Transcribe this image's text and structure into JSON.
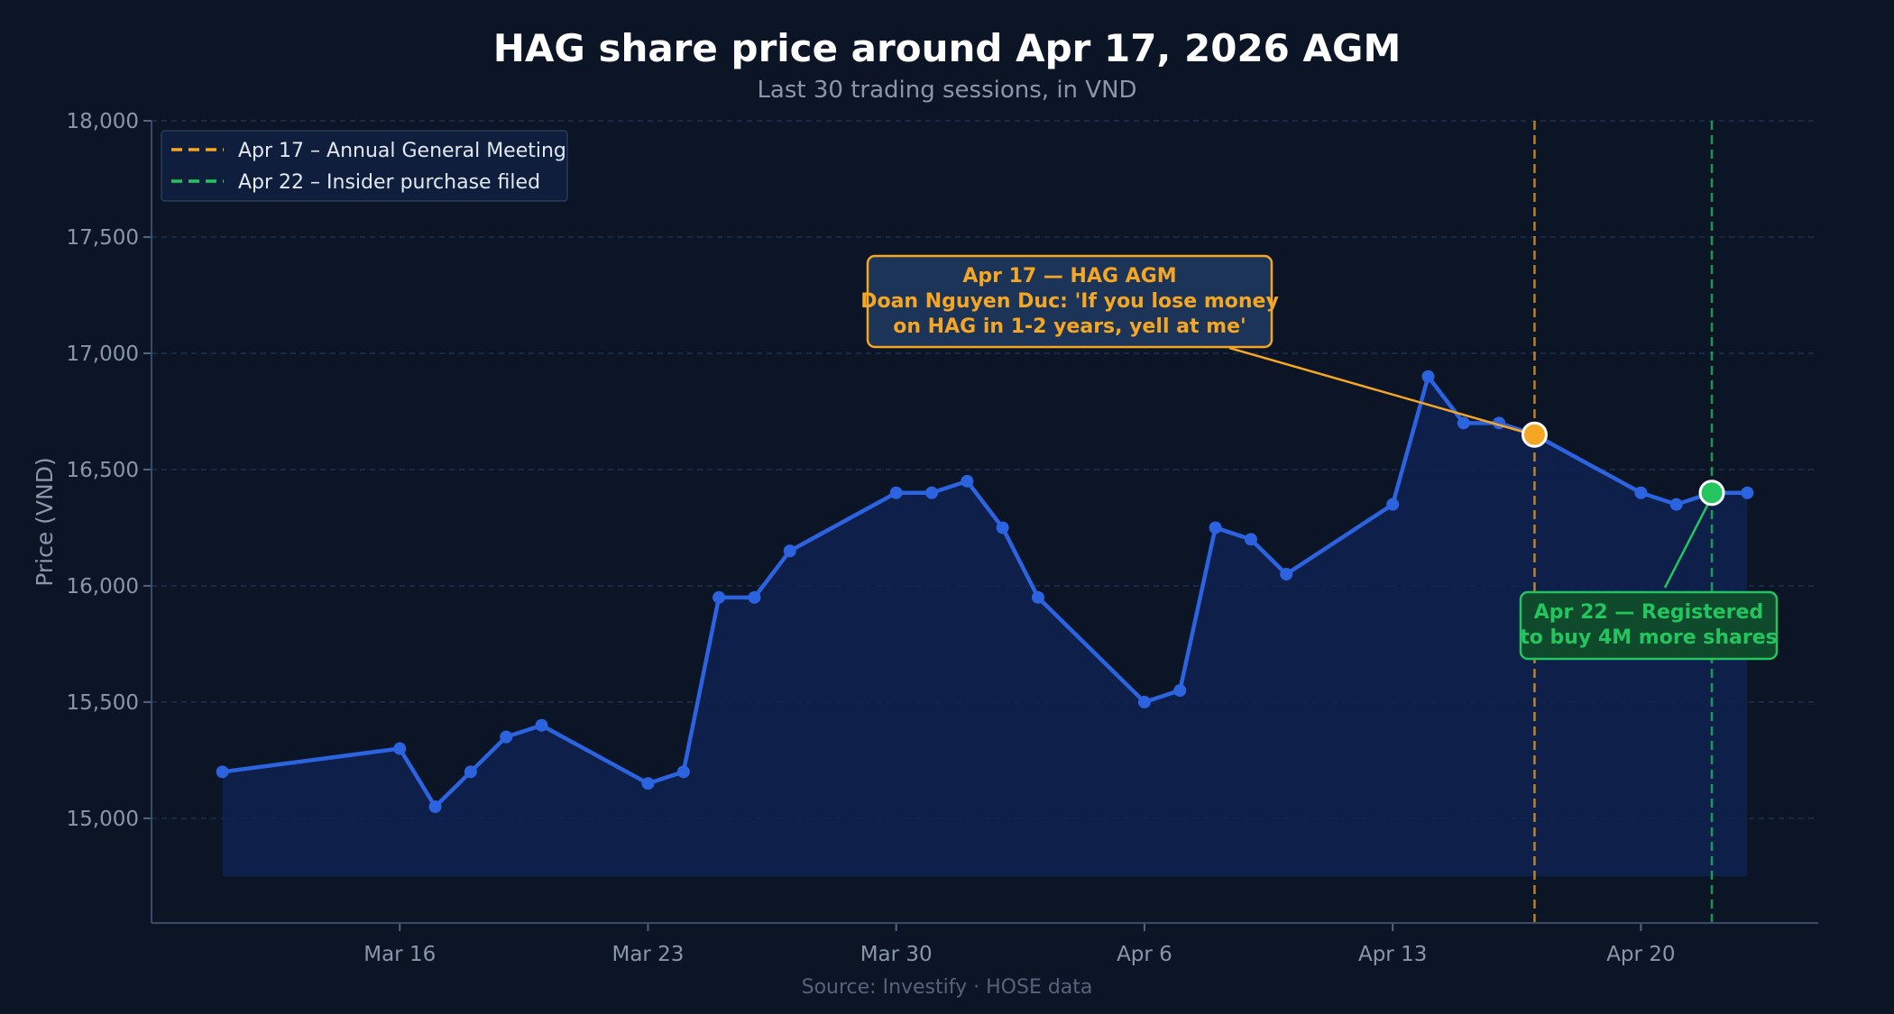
{
  "chart_data": {
    "type": "line",
    "title": "HAG share price around Apr 17, 2026 AGM",
    "subtitle": "Last 30 trading sessions, in VND",
    "ylabel": "Price (VND)",
    "xlabel": "",
    "ylim": [
      14550,
      18000
    ],
    "xlim": [
      "2026-03-09",
      "2026-04-25"
    ],
    "grid": true,
    "legend_position": "top-left",
    "source": "Source: Investify · HOSE data",
    "y_ticks": [
      {
        "value": 15000,
        "label": "15,000"
      },
      {
        "value": 15500,
        "label": "15,500"
      },
      {
        "value": 16000,
        "label": "16,000"
      },
      {
        "value": 16500,
        "label": "16,500"
      },
      {
        "value": 17000,
        "label": "17,000"
      },
      {
        "value": 17500,
        "label": "17,500"
      },
      {
        "value": 18000,
        "label": "18,000"
      }
    ],
    "x_ticks": [
      {
        "value": "2026-03-16",
        "label": "Mar 16"
      },
      {
        "value": "2026-03-23",
        "label": "Mar 23"
      },
      {
        "value": "2026-03-30",
        "label": "Mar 30"
      },
      {
        "value": "2026-04-06",
        "label": "Apr 6"
      },
      {
        "value": "2026-04-13",
        "label": "Apr 13"
      },
      {
        "value": "2026-04-20",
        "label": "Apr 20"
      }
    ],
    "series": [
      {
        "color": "#2b63e0",
        "points": [
          {
            "x": "2026-03-11",
            "y": 15200
          },
          {
            "x": "2026-03-16",
            "y": 15300
          },
          {
            "x": "2026-03-17",
            "y": 15050
          },
          {
            "x": "2026-03-18",
            "y": 15200
          },
          {
            "x": "2026-03-19",
            "y": 15350
          },
          {
            "x": "2026-03-20",
            "y": 15400
          },
          {
            "x": "2026-03-23",
            "y": 15150
          },
          {
            "x": "2026-03-24",
            "y": 15200
          },
          {
            "x": "2026-03-25",
            "y": 15950
          },
          {
            "x": "2026-03-26",
            "y": 15950
          },
          {
            "x": "2026-03-27",
            "y": 16150
          },
          {
            "x": "2026-03-30",
            "y": 16400
          },
          {
            "x": "2026-03-31",
            "y": 16400
          },
          {
            "x": "2026-04-01",
            "y": 16450
          },
          {
            "x": "2026-04-02",
            "y": 16250
          },
          {
            "x": "2026-04-03",
            "y": 15950
          },
          {
            "x": "2026-04-06",
            "y": 15500
          },
          {
            "x": "2026-04-07",
            "y": 15550
          },
          {
            "x": "2026-04-08",
            "y": 16250
          },
          {
            "x": "2026-04-09",
            "y": 16200
          },
          {
            "x": "2026-04-10",
            "y": 16050
          },
          {
            "x": "2026-04-13",
            "y": 16350
          },
          {
            "x": "2026-04-14",
            "y": 16900
          },
          {
            "x": "2026-04-15",
            "y": 16700
          },
          {
            "x": "2026-04-16",
            "y": 16700
          },
          {
            "x": "2026-04-17",
            "y": 16650
          },
          {
            "x": "2026-04-20",
            "y": 16400
          },
          {
            "x": "2026-04-21",
            "y": 16350
          },
          {
            "x": "2026-04-22",
            "y": 16400
          },
          {
            "x": "2026-04-23",
            "y": 16400
          }
        ]
      }
    ],
    "events": [
      {
        "date": "2026-04-17",
        "price": 16650,
        "color": "#f5a623",
        "legend": "Apr 17 – Annual General Meeting",
        "callout": [
          "Apr 17 — HAG AGM",
          "Doan Nguyen Duc: 'If you lose money",
          "on HAG in 1-2 years, yell at me'"
        ]
      },
      {
        "date": "2026-04-22",
        "price": 16400,
        "color": "#22c55e",
        "legend": "Apr 22 – Insider purchase filed",
        "callout": [
          "Apr 22 — Registered",
          "to buy 4M more shares"
        ]
      }
    ]
  }
}
